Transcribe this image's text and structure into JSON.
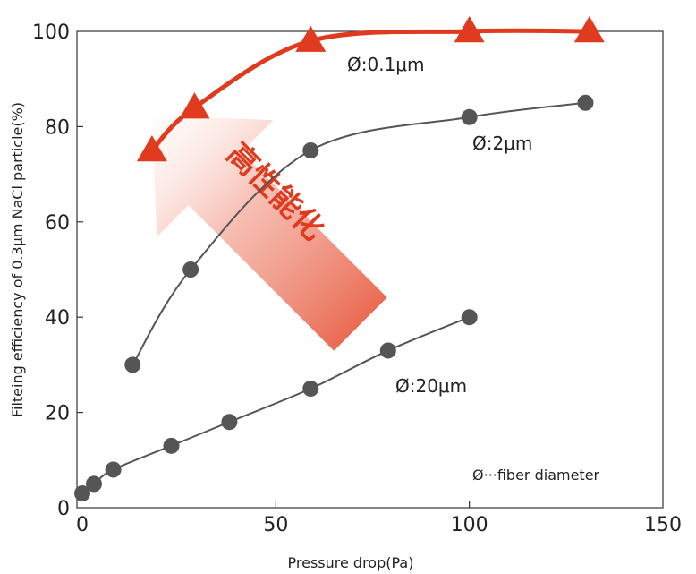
{
  "chart_data": {
    "type": "line",
    "title": "",
    "xlabel": "Pressure drop(Pa)",
    "ylabel": "Filteing efficiency of 0.3μm NaCl particle(%)",
    "xlim": [
      0,
      150
    ],
    "ylim": [
      0,
      100
    ],
    "xticks": [
      0,
      50,
      100,
      150
    ],
    "yticks": [
      0,
      20,
      40,
      60,
      80,
      100
    ],
    "grid": false,
    "series": [
      {
        "name": "Ø:0.1μm",
        "color": "#e03a1f",
        "marker": "triangle",
        "x": [
          18,
          29,
          59,
          100,
          131
        ],
        "y": [
          75,
          84,
          98,
          100,
          100
        ]
      },
      {
        "name": "Ø:2μm",
        "color": "#555555",
        "marker": "circle",
        "x": [
          13,
          28,
          59,
          100,
          130
        ],
        "y": [
          30,
          50,
          75,
          82,
          85
        ]
      },
      {
        "name": "Ø:20μm",
        "color": "#555555",
        "marker": "circle",
        "x": [
          0,
          3,
          8,
          23,
          38,
          59,
          79,
          100
        ],
        "y": [
          3,
          5,
          8,
          13,
          18,
          25,
          33,
          40
        ]
      }
    ],
    "annotations": {
      "arrow_label": "高性能化",
      "note": "Ø···fiber diameter"
    }
  }
}
